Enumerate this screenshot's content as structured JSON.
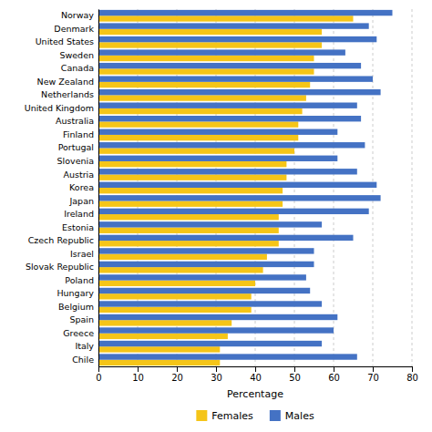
{
  "chart_data": {
    "type": "bar",
    "orientation": "horizontal",
    "x_label": "Percentage",
    "categories": [
      "Norway",
      "Denmark",
      "United States",
      "Sweden",
      "Canada",
      "New Zealand",
      "Netherlands",
      "United Kingdom",
      "Australia",
      "Finland",
      "Portugal",
      "Slovenia",
      "Austria",
      "Korea",
      "Japan",
      "Ireland",
      "Estonia",
      "Czech Republic",
      "Israel",
      "Slovak Republic",
      "Poland",
      "Hungary",
      "Belgium",
      "Spain",
      "Greece",
      "Italy",
      "Chile"
    ],
    "series": [
      {
        "name": "Females",
        "color": "#F5C518",
        "values": [
          65,
          57,
          57,
          55,
          55,
          54,
          53,
          52,
          51,
          51,
          50,
          48,
          48,
          47,
          47,
          46,
          46,
          46,
          43,
          42,
          40,
          39,
          39,
          34,
          33,
          31,
          31
        ]
      },
      {
        "name": "Males",
        "color": "#4472C4",
        "values": [
          75,
          69,
          71,
          63,
          67,
          70,
          72,
          66,
          67,
          61,
          68,
          61,
          66,
          71,
          72,
          69,
          57,
          65,
          55,
          55,
          53,
          54,
          57,
          61,
          60,
          57,
          66
        ]
      }
    ],
    "xlim": [
      0,
      80
    ],
    "xticks": [
      0,
      10,
      20,
      30,
      40,
      50,
      60,
      70,
      80
    ],
    "grid": true,
    "legend": "bottom"
  }
}
